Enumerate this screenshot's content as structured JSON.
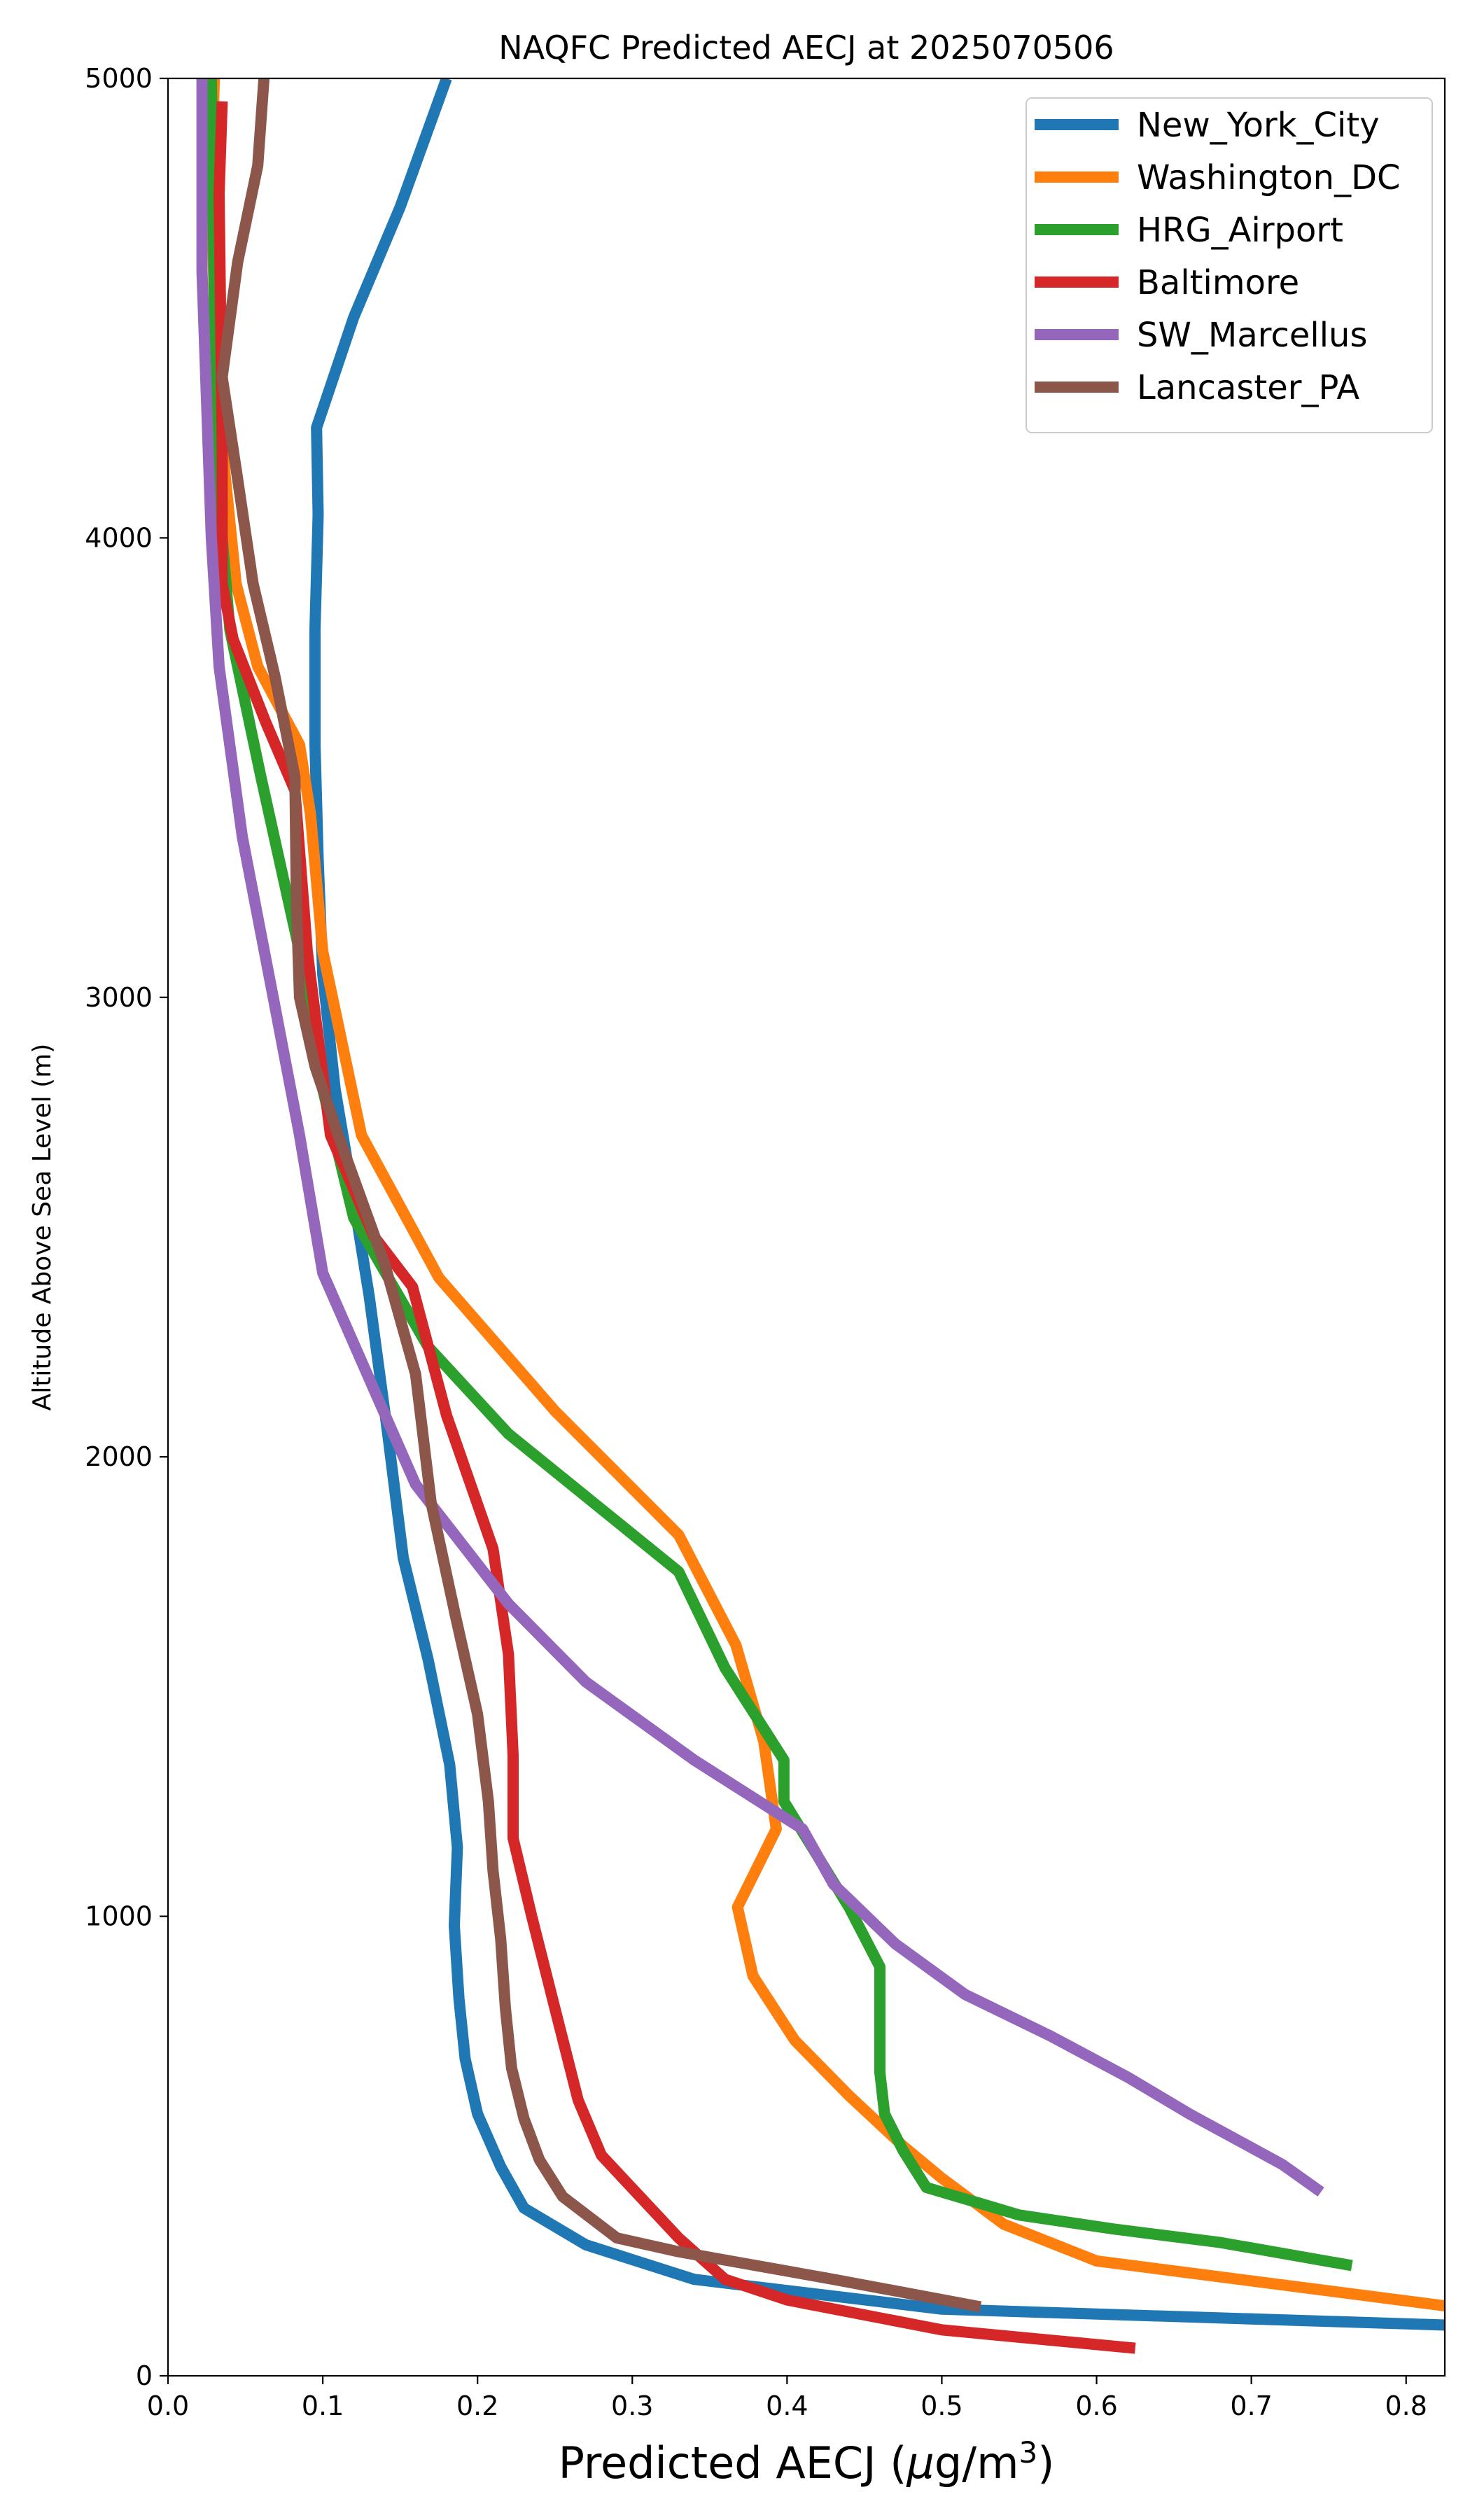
{
  "chart_data": {
    "type": "line",
    "title": "NAQFC Predicted AECJ at 2025070506",
    "xlabel_main": "Predicted AECJ (",
    "xlabel_mu": "μ",
    "xlabel_unit": "g/m",
    "xlabel_sup": "3",
    "xlabel_close": ")",
    "ylabel": "Altitude Above Sea Level (m)",
    "xlim": [
      0,
      0.825
    ],
    "ylim": [
      0,
      5000
    ],
    "xticks": [
      0.0,
      0.1,
      0.2,
      0.3,
      0.4,
      0.5,
      0.6,
      0.7,
      0.8
    ],
    "xtick_labels": [
      "0.0",
      "0.1",
      "0.2",
      "0.3",
      "0.4",
      "0.5",
      "0.6",
      "0.7",
      "0.8"
    ],
    "yticks": [
      0,
      1000,
      2000,
      3000,
      4000,
      5000
    ],
    "ytick_labels": [
      "0",
      "1000",
      "2000",
      "3000",
      "4000",
      "5000"
    ],
    "grid": false,
    "legend_position": "top-right",
    "series": [
      {
        "name": "New_York_City",
        "color": "#1f77b4",
        "points": [
          [
            0.83,
            110
          ],
          [
            0.5,
            145
          ],
          [
            0.34,
            210
          ],
          [
            0.27,
            285
          ],
          [
            0.23,
            365
          ],
          [
            0.215,
            455
          ],
          [
            0.2,
            570
          ],
          [
            0.192,
            690
          ],
          [
            0.188,
            820
          ],
          [
            0.185,
            980
          ],
          [
            0.187,
            1150
          ],
          [
            0.182,
            1330
          ],
          [
            0.168,
            1560
          ],
          [
            0.152,
            1780
          ],
          [
            0.142,
            2050
          ],
          [
            0.13,
            2350
          ],
          [
            0.118,
            2600
          ],
          [
            0.108,
            2800
          ],
          [
            0.1,
            3050
          ],
          [
            0.097,
            3300
          ],
          [
            0.095,
            3550
          ],
          [
            0.095,
            3800
          ],
          [
            0.097,
            4050
          ],
          [
            0.096,
            4240
          ],
          [
            0.12,
            4480
          ],
          [
            0.15,
            4720
          ],
          [
            0.18,
            5000
          ]
        ]
      },
      {
        "name": "Washington_DC",
        "color": "#ff7f0e",
        "points": [
          [
            0.83,
            150
          ],
          [
            0.6,
            250
          ],
          [
            0.54,
            330
          ],
          [
            0.5,
            430
          ],
          [
            0.475,
            500
          ],
          [
            0.44,
            610
          ],
          [
            0.405,
            730
          ],
          [
            0.378,
            870
          ],
          [
            0.368,
            1020
          ],
          [
            0.393,
            1190
          ],
          [
            0.385,
            1380
          ],
          [
            0.367,
            1590
          ],
          [
            0.33,
            1830
          ],
          [
            0.25,
            2100
          ],
          [
            0.175,
            2390
          ],
          [
            0.125,
            2700
          ],
          [
            0.1,
            3100
          ],
          [
            0.092,
            3400
          ],
          [
            0.085,
            3550
          ],
          [
            0.058,
            3720
          ],
          [
            0.044,
            3900
          ],
          [
            0.035,
            4200
          ],
          [
            0.03,
            4500
          ],
          [
            0.028,
            4800
          ],
          [
            0.03,
            5000
          ]
        ]
      },
      {
        "name": "HRG_Airport",
        "color": "#2ca02c",
        "points": [
          [
            0.765,
            240
          ],
          [
            0.68,
            290
          ],
          [
            0.61,
            320
          ],
          [
            0.55,
            350
          ],
          [
            0.49,
            410
          ],
          [
            0.475,
            490
          ],
          [
            0.463,
            570
          ],
          [
            0.46,
            660
          ],
          [
            0.46,
            760
          ],
          [
            0.46,
            890
          ],
          [
            0.44,
            1020
          ],
          [
            0.398,
            1250
          ],
          [
            0.398,
            1340
          ],
          [
            0.36,
            1540
          ],
          [
            0.33,
            1750
          ],
          [
            0.22,
            2050
          ],
          [
            0.168,
            2240
          ],
          [
            0.12,
            2520
          ],
          [
            0.1,
            2800
          ],
          [
            0.085,
            3100
          ],
          [
            0.06,
            3480
          ],
          [
            0.04,
            3800
          ],
          [
            0.035,
            4000
          ],
          [
            0.03,
            4500
          ],
          [
            0.028,
            5000
          ]
        ]
      },
      {
        "name": "Baltimore",
        "color": "#d62728",
        "points": [
          [
            0.625,
            60
          ],
          [
            0.5,
            100
          ],
          [
            0.4,
            165
          ],
          [
            0.36,
            210
          ],
          [
            0.33,
            300
          ],
          [
            0.305,
            390
          ],
          [
            0.28,
            480
          ],
          [
            0.27,
            560
          ],
          [
            0.265,
            600
          ],
          [
            0.25,
            800
          ],
          [
            0.235,
            1000
          ],
          [
            0.223,
            1170
          ],
          [
            0.223,
            1350
          ],
          [
            0.22,
            1570
          ],
          [
            0.21,
            1800
          ],
          [
            0.18,
            2090
          ],
          [
            0.158,
            2370
          ],
          [
            0.133,
            2480
          ],
          [
            0.105,
            2700
          ],
          [
            0.09,
            3100
          ],
          [
            0.082,
            3450
          ],
          [
            0.063,
            3600
          ],
          [
            0.042,
            3780
          ],
          [
            0.035,
            3900
          ],
          [
            0.035,
            4200
          ],
          [
            0.033,
            4750
          ],
          [
            0.035,
            4950
          ]
        ]
      },
      {
        "name": "SW_Marcellus",
        "color": "#9467bd",
        "points": [
          [
            0.745,
            400
          ],
          [
            0.72,
            460
          ],
          [
            0.66,
            570
          ],
          [
            0.62,
            650
          ],
          [
            0.57,
            740
          ],
          [
            0.515,
            830
          ],
          [
            0.47,
            940
          ],
          [
            0.43,
            1070
          ],
          [
            0.41,
            1190
          ],
          [
            0.34,
            1340
          ],
          [
            0.27,
            1510
          ],
          [
            0.22,
            1680
          ],
          [
            0.16,
            1940
          ],
          [
            0.1,
            2400
          ],
          [
            0.085,
            2700
          ],
          [
            0.068,
            3000
          ],
          [
            0.048,
            3350
          ],
          [
            0.033,
            3720
          ],
          [
            0.028,
            4000
          ],
          [
            0.022,
            4580
          ],
          [
            0.022,
            5000
          ]
        ]
      },
      {
        "name": "Lancaster_PA",
        "color": "#8c564b",
        "points": [
          [
            0.525,
            150
          ],
          [
            0.43,
            210
          ],
          [
            0.33,
            270
          ],
          [
            0.29,
            300
          ],
          [
            0.255,
            390
          ],
          [
            0.24,
            470
          ],
          [
            0.23,
            560
          ],
          [
            0.222,
            670
          ],
          [
            0.218,
            800
          ],
          [
            0.215,
            950
          ],
          [
            0.21,
            1100
          ],
          [
            0.207,
            1250
          ],
          [
            0.2,
            1440
          ],
          [
            0.186,
            1650
          ],
          [
            0.17,
            1900
          ],
          [
            0.16,
            2180
          ],
          [
            0.14,
            2420
          ],
          [
            0.11,
            2700
          ],
          [
            0.095,
            2850
          ],
          [
            0.085,
            3000
          ],
          [
            0.083,
            3200
          ],
          [
            0.082,
            3480
          ],
          [
            0.069,
            3700
          ],
          [
            0.055,
            3900
          ],
          [
            0.044,
            4150
          ],
          [
            0.035,
            4350
          ],
          [
            0.045,
            4600
          ],
          [
            0.058,
            4810
          ],
          [
            0.062,
            5000
          ]
        ]
      }
    ]
  }
}
